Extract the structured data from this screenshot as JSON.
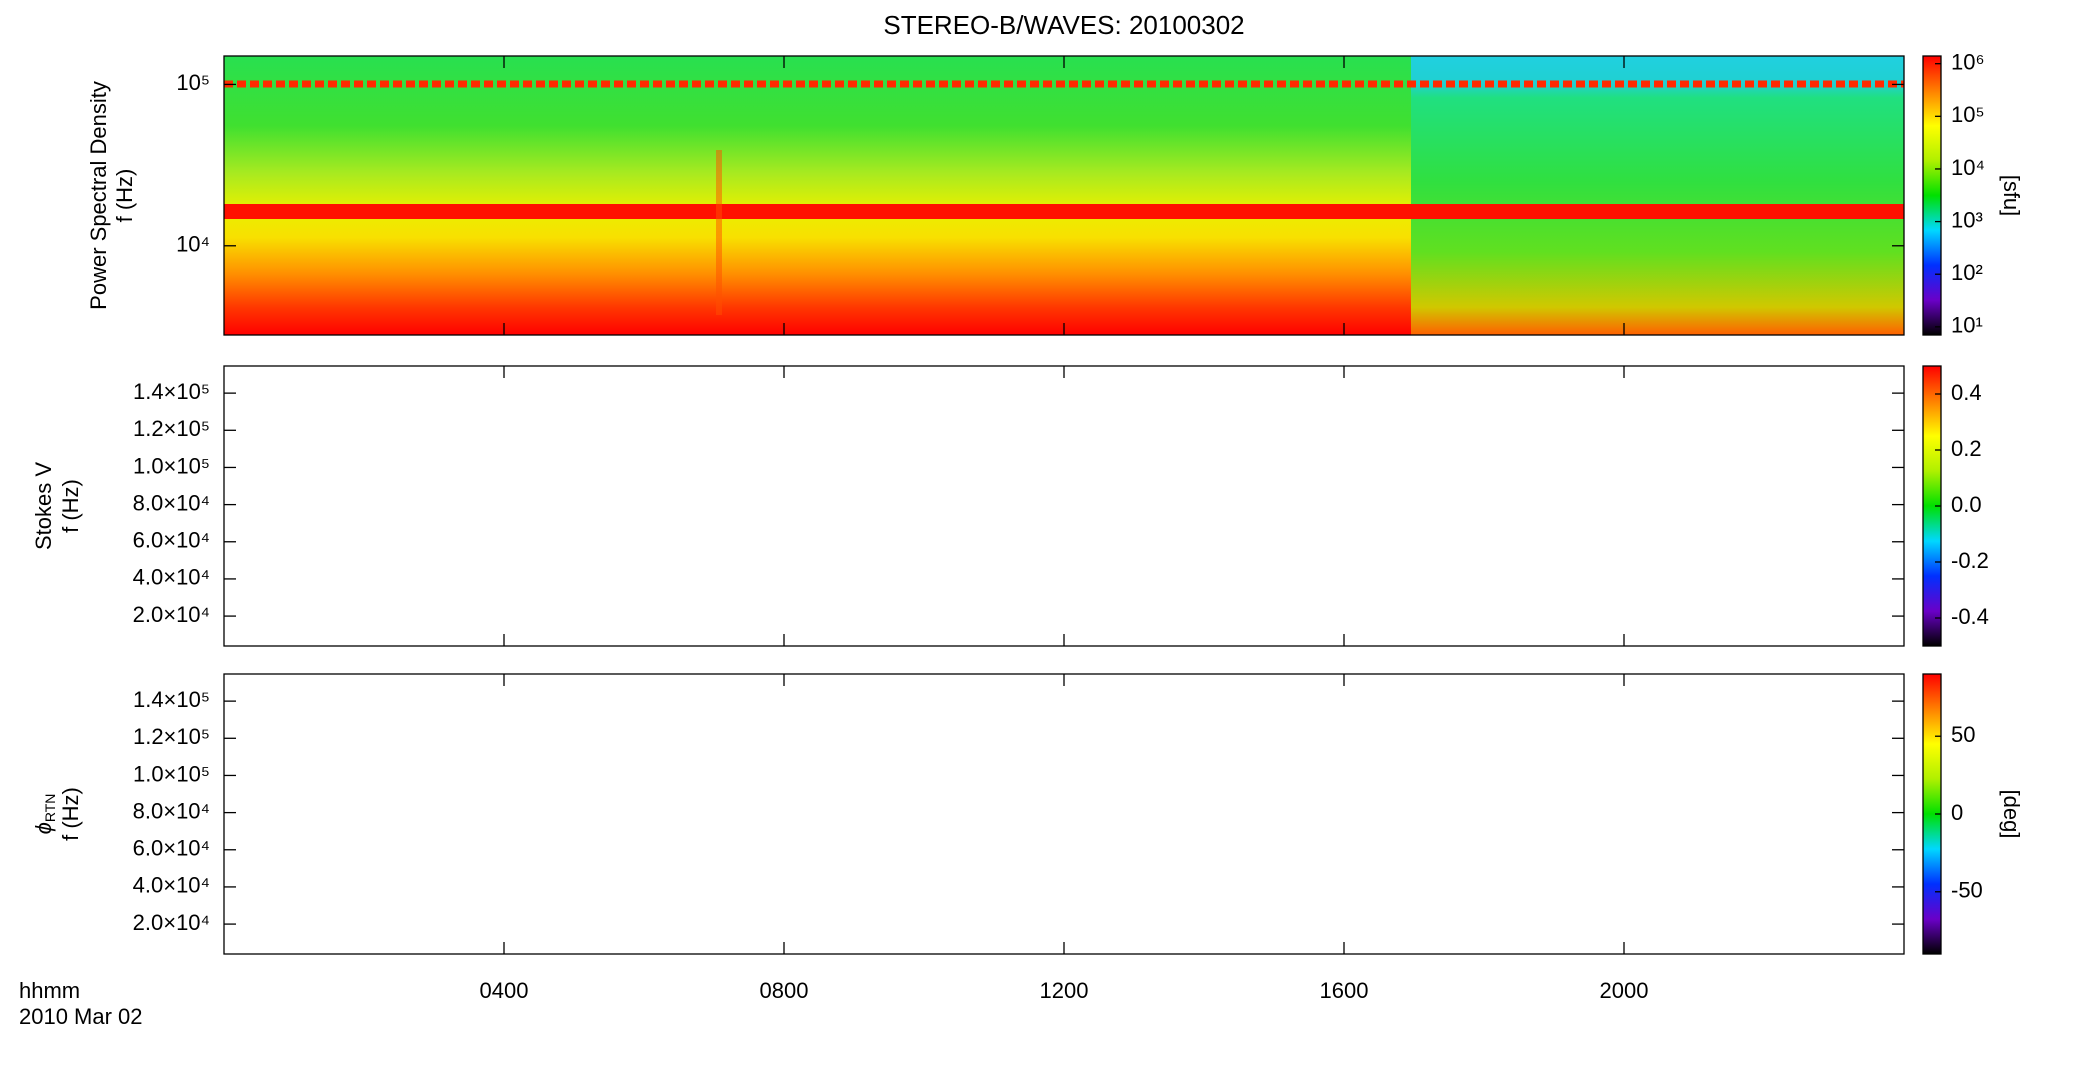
{
  "chart_data": [
    {
      "type": "heatmap",
      "title": "STEREO-B/WAVES: 20100302",
      "ylabel": [
        "Power Spectral Density",
        "f (Hz)"
      ],
      "ylog": true,
      "ylim": [
        2800,
        150000
      ],
      "yticks": [
        {
          "value": 10000,
          "label": "10⁴"
        },
        {
          "value": 100000,
          "label": "10⁵"
        }
      ],
      "colorbar": {
        "log": true,
        "lim": [
          7,
          1400000
        ],
        "label": "[sfu]",
        "ticks": [
          {
            "value": 10,
            "label": "10¹"
          },
          {
            "value": 100,
            "label": "10²"
          },
          {
            "value": 1000,
            "label": "10³"
          },
          {
            "value": 10000,
            "label": "10⁴"
          },
          {
            "value": 100000,
            "label": "10⁵"
          },
          {
            "value": 1000000,
            "label": "10⁶"
          }
        ],
        "colormap": [
          "#000000",
          "#6a00c8",
          "#0030ff",
          "#00d8ff",
          "#00e000",
          "#b0f000",
          "#ffff00",
          "#ff8000",
          "#ff0000"
        ]
      }
    },
    {
      "type": "heatmap",
      "ylabel": [
        "Stokes V",
        "f (Hz)"
      ],
      "ylog": false,
      "ylim": [
        3900,
        154600
      ],
      "yticks": [
        {
          "value": 20000,
          "label": "2.0×10⁴"
        },
        {
          "value": 40000,
          "label": "4.0×10⁴"
        },
        {
          "value": 60000,
          "label": "6.0×10⁴"
        },
        {
          "value": 80000,
          "label": "8.0×10⁴"
        },
        {
          "value": 100000,
          "label": "1.0×10⁵"
        },
        {
          "value": 120000,
          "label": "1.2×10⁵"
        },
        {
          "value": 140000,
          "label": "1.4×10⁵"
        }
      ],
      "colorbar": {
        "log": false,
        "lim": [
          -0.5,
          0.5
        ],
        "ticks": [
          -0.4,
          -0.2,
          {
            "value": 0,
            "label": "0.0"
          },
          0.2,
          0.4
        ],
        "colormap": [
          "#000000",
          "#6a00c8",
          "#0030ff",
          "#00d8ff",
          "#00e000",
          "#b0f000",
          "#ffff00",
          "#ff8000",
          "#ff0000"
        ]
      }
    },
    {
      "type": "heatmap",
      "ylabel": [
        "ϕ",
        "RTN",
        "f (Hz)"
      ],
      "ylog": false,
      "ylim": [
        3900,
        154600
      ],
      "yticks": [
        {
          "value": 20000,
          "label": "2.0×10⁴"
        },
        {
          "value": 40000,
          "label": "4.0×10⁴"
        },
        {
          "value": 60000,
          "label": "6.0×10⁴"
        },
        {
          "value": 80000,
          "label": "8.0×10⁴"
        },
        {
          "value": 100000,
          "label": "1.0×10⁵"
        },
        {
          "value": 120000,
          "label": "1.2×10⁵"
        },
        {
          "value": 140000,
          "label": "1.4×10⁵"
        }
      ],
      "colorbar": {
        "log": false,
        "lim": [
          -90,
          90
        ],
        "label": "[deg]",
        "ticks": [
          -50,
          0,
          50
        ],
        "colormap": [
          "#000000",
          "#6a00c8",
          "#0030ff",
          "#00d8ff",
          "#00e000",
          "#b0f000",
          "#ffff00",
          "#ff8000",
          "#ff0000"
        ]
      },
      "xlabel": [
        "hhmm",
        "2010 Mar 02"
      ],
      "xlim": [
        0,
        24
      ],
      "xticks": [
        {
          "value": 4,
          "label": "0400"
        },
        {
          "value": 8,
          "label": "0800"
        },
        {
          "value": 12,
          "label": "1200"
        },
        {
          "value": 16,
          "label": "1600"
        },
        {
          "value": 20,
          "label": "2000"
        }
      ]
    }
  ]
}
